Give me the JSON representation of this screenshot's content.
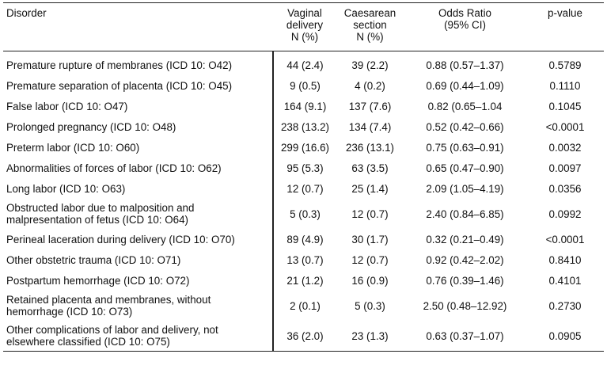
{
  "header": {
    "disorder": "Disorder",
    "vaginal": [
      "Vaginal",
      "delivery",
      "N (%)"
    ],
    "caesarean": [
      "Caesarean",
      "section",
      "N (%)"
    ],
    "odds": [
      "Odds Ratio",
      "(95% CI)"
    ],
    "pvalue": "p-value"
  },
  "rows": [
    {
      "disorder": "Premature rupture of membranes (ICD 10: O42)",
      "vaginal": "44 (2.4)",
      "caesarean": "39 (2.2)",
      "odds": "0.88 (0.57–1.37)",
      "p": "0.5789"
    },
    {
      "disorder": "Premature separation of placenta (ICD 10: O45)",
      "vaginal": "9 (0.5)",
      "caesarean": "4 (0.2)",
      "odds": "0.69 (0.44–1.09)",
      "p": "0.1110"
    },
    {
      "disorder": "False labor (ICD 10: O47)",
      "vaginal": "164 (9.1)",
      "caesarean": "137 (7.6)",
      "odds": "0.82 (0.65–1.04",
      "p": "0.1045"
    },
    {
      "disorder": "Prolonged pregnancy (ICD 10: O48)",
      "vaginal": "238 (13.2)",
      "caesarean": "134 (7.4)",
      "odds": "0.52 (0.42–0.66)",
      "p": "<0.0001"
    },
    {
      "disorder": "Preterm labor (ICD 10: O60)",
      "vaginal": "299 (16.6)",
      "caesarean": "236 (13.1)",
      "odds": "0.75 (0.63–0.91)",
      "p": "0.0032"
    },
    {
      "disorder": "Abnormalities of forces of labor (ICD 10: O62)",
      "vaginal": "95 (5.3)",
      "caesarean": "63 (3.5)",
      "odds": "0.65 (0.47–0.90)",
      "p": "0.0097"
    },
    {
      "disorder": "Long labor (ICD 10: O63)",
      "vaginal": "12 (0.7)",
      "caesarean": "25 (1.4)",
      "odds": "2.09 (1.05–4.19)",
      "p": "0.0356"
    },
    {
      "disorder": "Obstructed labor due to malposition and malpresentation of fetus (ICD 10: O64)",
      "vaginal": "5 (0.3)",
      "caesarean": "12 (0.7)",
      "odds": "2.40 (0.84–6.85)",
      "p": "0.0992"
    },
    {
      "disorder": "Perineal laceration during delivery (ICD 10: O70)",
      "vaginal": "89 (4.9)",
      "caesarean": "30 (1.7)",
      "odds": "0.32 (0.21–0.49)",
      "p": "<0.0001"
    },
    {
      "disorder": "Other obstetric trauma (ICD 10: O71)",
      "vaginal": "13 (0.7)",
      "caesarean": "12 (0.7)",
      "odds": "0.92 (0.42–2.02)",
      "p": "0.8410"
    },
    {
      "disorder": "Postpartum hemorrhage (ICD 10: O72)",
      "vaginal": "21 (1.2)",
      "caesarean": "16 (0.9)",
      "odds": "0.76 (0.39–1.46)",
      "p": "0.4101"
    },
    {
      "disorder": "Retained placenta and membranes, without hemorrhage (ICD 10: O73)",
      "vaginal": "2 (0.1)",
      "caesarean": "5 (0.3)",
      "odds": "2.50 (0.48–12.92)",
      "p": "0.2730"
    },
    {
      "disorder": "Other complications of labor and delivery, not elsewhere classified (ICD 10: O75)",
      "vaginal": "36 (2.0)",
      "caesarean": "23 (1.3)",
      "odds": "0.63 (0.37–1.07)",
      "p": "0.0905"
    }
  ]
}
